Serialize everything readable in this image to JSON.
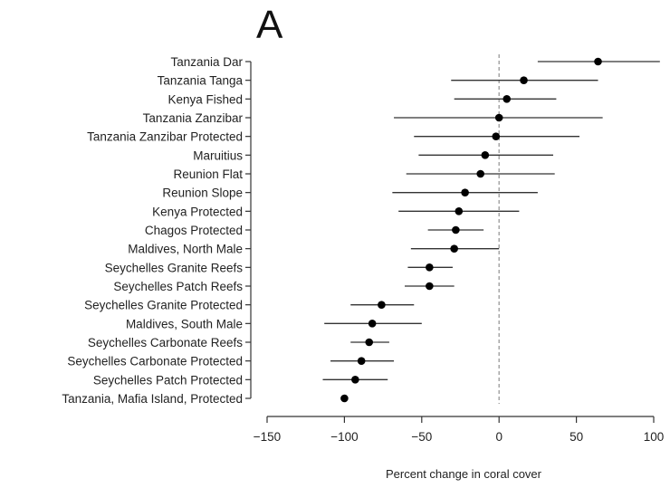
{
  "chart_data": {
    "type": "scatter",
    "panel_label": "A",
    "xlabel": "Percent change in coral cover",
    "xlim": [
      -150,
      100
    ],
    "xticks": [
      -150,
      -100,
      -50,
      0,
      50,
      100
    ],
    "reference_line_x": 0,
    "categories": [
      "Tanzania Dar",
      "Tanzania Tanga",
      "Kenya Fished",
      "Tanzania Zanzibar",
      "Tanzania Zanzibar Protected",
      "Maruitius",
      "Reunion Flat",
      "Reunion Slope",
      "Kenya Protected",
      "Chagos Protected",
      "Maldives, North Male",
      "Seychelles Granite Reefs",
      "Seychelles Patch Reefs",
      "Seychelles Granite Protected",
      "Maldives, South Male",
      "Seychelles Carbonate Reefs",
      "Seychelles Carbonate Protected",
      "Seychelles Patch Protected",
      "Tanzania, Mafia Island, Protected"
    ],
    "values": [
      64,
      16,
      5,
      0,
      -2,
      -9,
      -12,
      -22,
      -26,
      -28,
      -29,
      -45,
      -45,
      -76,
      -82,
      -84,
      -89,
      -93,
      -100
    ],
    "ci_low": [
      25,
      -31,
      -29,
      -68,
      -55,
      -52,
      -60,
      -69,
      -65,
      -46,
      -57,
      -59,
      -61,
      -96,
      -113,
      -96,
      -109,
      -114,
      null
    ],
    "ci_high": [
      104,
      64,
      37,
      67,
      52,
      35,
      36,
      25,
      13,
      -10,
      0,
      -30,
      -29,
      -55,
      -50,
      -71,
      -68,
      -72,
      null
    ]
  }
}
